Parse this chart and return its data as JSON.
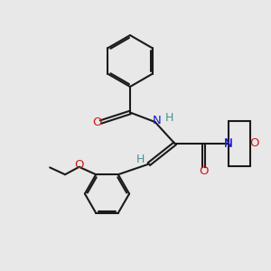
{
  "background_color": "#e8e8e8",
  "bond_color": "#1a1a1a",
  "n_color": "#1a1acc",
  "o_color": "#cc1a1a",
  "h_color": "#4a9090",
  "figsize": [
    3.0,
    3.0
  ],
  "dpi": 100,
  "lw": 1.5,
  "lw_dbl_sep": 0.06,
  "xlim": [
    0,
    10
  ],
  "ylim": [
    0,
    10
  ]
}
